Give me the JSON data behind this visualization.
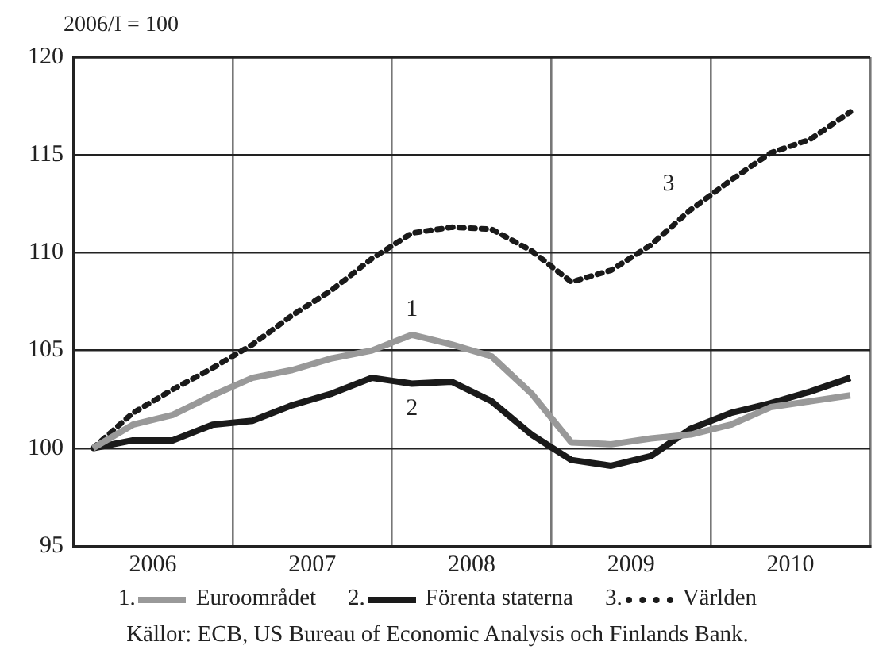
{
  "chart_data": {
    "type": "line",
    "ylabel": "2006/I = 100",
    "x": [
      2006.125,
      2006.375,
      2006.625,
      2006.875,
      2007.125,
      2007.375,
      2007.625,
      2007.875,
      2008.125,
      2008.375,
      2008.625,
      2008.875,
      2009.125,
      2009.375,
      2009.625,
      2009.875,
      2010.125,
      2010.375,
      2010.625,
      2010.875
    ],
    "series": [
      {
        "name": "Euroområdet",
        "color": "#999999",
        "line_style": "solid",
        "values": [
          100,
          101.2,
          101.7,
          102.7,
          103.6,
          104.0,
          104.6,
          105.0,
          105.8,
          105.3,
          104.7,
          102.8,
          100.3,
          100.2,
          100.5,
          100.7,
          101.2,
          102.1,
          102.4,
          102.7
        ]
      },
      {
        "name": "Förenta staterna",
        "color": "#1a1a1a",
        "line_style": "solid",
        "values": [
          100,
          100.4,
          100.4,
          101.2,
          101.4,
          102.2,
          102.8,
          103.6,
          103.3,
          103.4,
          102.4,
          100.7,
          99.4,
          99.1,
          99.6,
          101.0,
          101.8,
          102.3,
          102.9,
          103.6
        ]
      },
      {
        "name": "Världen",
        "color": "#1a1a1a",
        "line_style": "dotted",
        "values": [
          100,
          101.8,
          103.0,
          104.1,
          105.3,
          106.8,
          108.1,
          109.7,
          111.0,
          111.3,
          111.2,
          110.1,
          108.5,
          109.1,
          110.4,
          112.2,
          113.7,
          115.1,
          115.8,
          117.2
        ]
      }
    ],
    "xlim": [
      2006,
      2011
    ],
    "xticks": [
      {
        "value": 2006,
        "label": null
      },
      {
        "value": 2006.5,
        "label": "2006"
      },
      {
        "value": 2007,
        "label": null
      },
      {
        "value": 2007.5,
        "label": "2007"
      },
      {
        "value": 2008,
        "label": null
      },
      {
        "value": 2008.5,
        "label": "2008"
      },
      {
        "value": 2009,
        "label": null
      },
      {
        "value": 2009.5,
        "label": "2009"
      },
      {
        "value": 2010,
        "label": null
      },
      {
        "value": 2010.5,
        "label": "2010"
      },
      {
        "value": 2011,
        "label": null
      }
    ],
    "ylim": [
      95,
      120
    ],
    "yticks": [
      95,
      100,
      105,
      110,
      115,
      120
    ],
    "grid": true,
    "legend": "bottom",
    "marker": "none",
    "annotations": [
      "1",
      "2",
      "3",
      "1.",
      "2.",
      "3.",
      "Källor: ECB, US Bureau of Economic Analysis och Finlands Bank."
    ]
  }
}
